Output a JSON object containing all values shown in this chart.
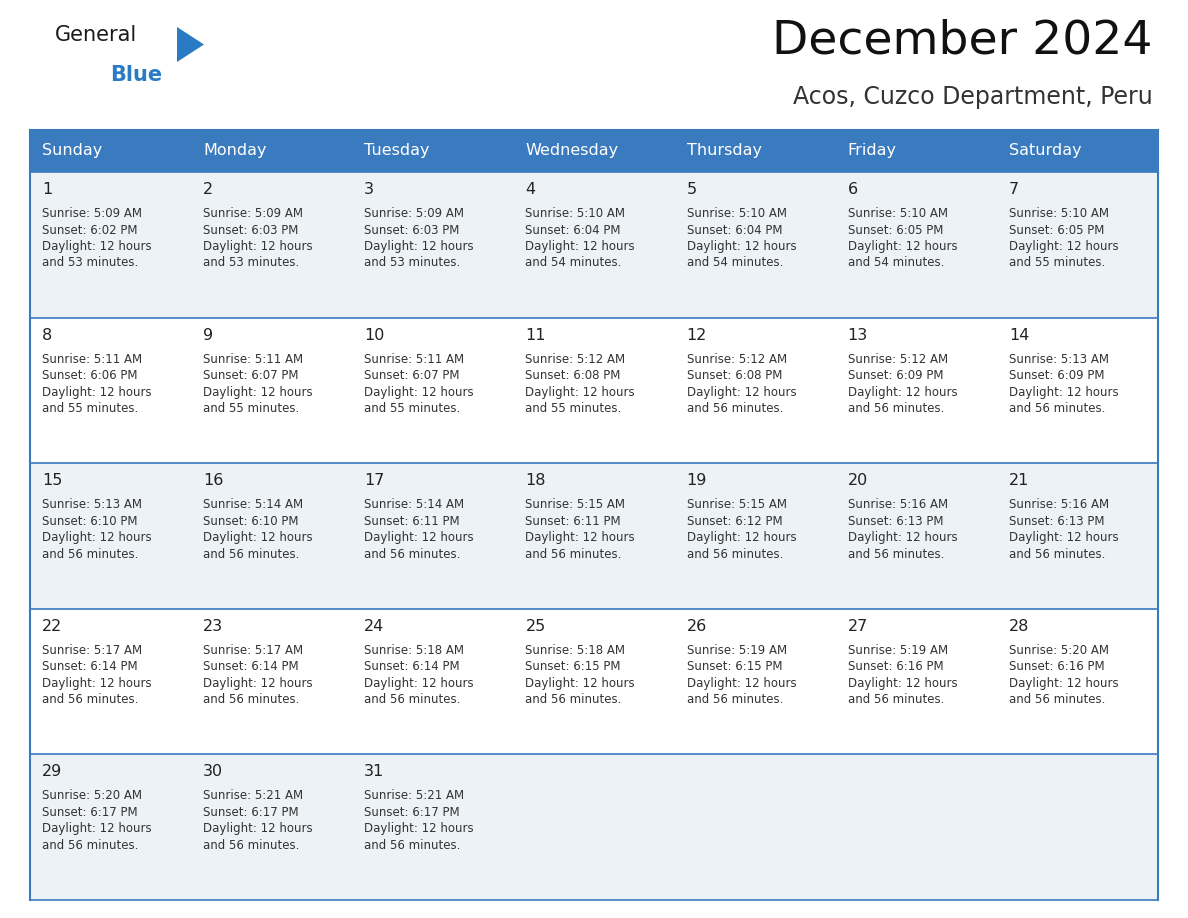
{
  "title": "December 2024",
  "subtitle": "Acos, Cuzco Department, Peru",
  "header_bg": "#3a7abf",
  "header_text": "#ffffff",
  "weekdays": [
    "Sunday",
    "Monday",
    "Tuesday",
    "Wednesday",
    "Thursday",
    "Friday",
    "Saturday"
  ],
  "row_bg_odd": "#edf2f7",
  "row_bg_even": "#ffffff",
  "cell_border": "#3a7abf",
  "day_text_color": "#222222",
  "info_text_color": "#333333",
  "logo_general_color": "#222222",
  "logo_blue_color": "#2b7bc4",
  "days": [
    {
      "day": 1,
      "col": 0,
      "row": 0,
      "sunrise": "5:09 AM",
      "sunset": "6:02 PM",
      "dl_hours": "12 hours",
      "dl_mins": "53 minutes."
    },
    {
      "day": 2,
      "col": 1,
      "row": 0,
      "sunrise": "5:09 AM",
      "sunset": "6:03 PM",
      "dl_hours": "12 hours",
      "dl_mins": "53 minutes."
    },
    {
      "day": 3,
      "col": 2,
      "row": 0,
      "sunrise": "5:09 AM",
      "sunset": "6:03 PM",
      "dl_hours": "12 hours",
      "dl_mins": "53 minutes."
    },
    {
      "day": 4,
      "col": 3,
      "row": 0,
      "sunrise": "5:10 AM",
      "sunset": "6:04 PM",
      "dl_hours": "12 hours",
      "dl_mins": "54 minutes."
    },
    {
      "day": 5,
      "col": 4,
      "row": 0,
      "sunrise": "5:10 AM",
      "sunset": "6:04 PM",
      "dl_hours": "12 hours",
      "dl_mins": "54 minutes."
    },
    {
      "day": 6,
      "col": 5,
      "row": 0,
      "sunrise": "5:10 AM",
      "sunset": "6:05 PM",
      "dl_hours": "12 hours",
      "dl_mins": "54 minutes."
    },
    {
      "day": 7,
      "col": 6,
      "row": 0,
      "sunrise": "5:10 AM",
      "sunset": "6:05 PM",
      "dl_hours": "12 hours",
      "dl_mins": "55 minutes."
    },
    {
      "day": 8,
      "col": 0,
      "row": 1,
      "sunrise": "5:11 AM",
      "sunset": "6:06 PM",
      "dl_hours": "12 hours",
      "dl_mins": "55 minutes."
    },
    {
      "day": 9,
      "col": 1,
      "row": 1,
      "sunrise": "5:11 AM",
      "sunset": "6:07 PM",
      "dl_hours": "12 hours",
      "dl_mins": "55 minutes."
    },
    {
      "day": 10,
      "col": 2,
      "row": 1,
      "sunrise": "5:11 AM",
      "sunset": "6:07 PM",
      "dl_hours": "12 hours",
      "dl_mins": "55 minutes."
    },
    {
      "day": 11,
      "col": 3,
      "row": 1,
      "sunrise": "5:12 AM",
      "sunset": "6:08 PM",
      "dl_hours": "12 hours",
      "dl_mins": "55 minutes."
    },
    {
      "day": 12,
      "col": 4,
      "row": 1,
      "sunrise": "5:12 AM",
      "sunset": "6:08 PM",
      "dl_hours": "12 hours",
      "dl_mins": "56 minutes."
    },
    {
      "day": 13,
      "col": 5,
      "row": 1,
      "sunrise": "5:12 AM",
      "sunset": "6:09 PM",
      "dl_hours": "12 hours",
      "dl_mins": "56 minutes."
    },
    {
      "day": 14,
      "col": 6,
      "row": 1,
      "sunrise": "5:13 AM",
      "sunset": "6:09 PM",
      "dl_hours": "12 hours",
      "dl_mins": "56 minutes."
    },
    {
      "day": 15,
      "col": 0,
      "row": 2,
      "sunrise": "5:13 AM",
      "sunset": "6:10 PM",
      "dl_hours": "12 hours",
      "dl_mins": "56 minutes."
    },
    {
      "day": 16,
      "col": 1,
      "row": 2,
      "sunrise": "5:14 AM",
      "sunset": "6:10 PM",
      "dl_hours": "12 hours",
      "dl_mins": "56 minutes."
    },
    {
      "day": 17,
      "col": 2,
      "row": 2,
      "sunrise": "5:14 AM",
      "sunset": "6:11 PM",
      "dl_hours": "12 hours",
      "dl_mins": "56 minutes."
    },
    {
      "day": 18,
      "col": 3,
      "row": 2,
      "sunrise": "5:15 AM",
      "sunset": "6:11 PM",
      "dl_hours": "12 hours",
      "dl_mins": "56 minutes."
    },
    {
      "day": 19,
      "col": 4,
      "row": 2,
      "sunrise": "5:15 AM",
      "sunset": "6:12 PM",
      "dl_hours": "12 hours",
      "dl_mins": "56 minutes."
    },
    {
      "day": 20,
      "col": 5,
      "row": 2,
      "sunrise": "5:16 AM",
      "sunset": "6:13 PM",
      "dl_hours": "12 hours",
      "dl_mins": "56 minutes."
    },
    {
      "day": 21,
      "col": 6,
      "row": 2,
      "sunrise": "5:16 AM",
      "sunset": "6:13 PM",
      "dl_hours": "12 hours",
      "dl_mins": "56 minutes."
    },
    {
      "day": 22,
      "col": 0,
      "row": 3,
      "sunrise": "5:17 AM",
      "sunset": "6:14 PM",
      "dl_hours": "12 hours",
      "dl_mins": "56 minutes."
    },
    {
      "day": 23,
      "col": 1,
      "row": 3,
      "sunrise": "5:17 AM",
      "sunset": "6:14 PM",
      "dl_hours": "12 hours",
      "dl_mins": "56 minutes."
    },
    {
      "day": 24,
      "col": 2,
      "row": 3,
      "sunrise": "5:18 AM",
      "sunset": "6:14 PM",
      "dl_hours": "12 hours",
      "dl_mins": "56 minutes."
    },
    {
      "day": 25,
      "col": 3,
      "row": 3,
      "sunrise": "5:18 AM",
      "sunset": "6:15 PM",
      "dl_hours": "12 hours",
      "dl_mins": "56 minutes."
    },
    {
      "day": 26,
      "col": 4,
      "row": 3,
      "sunrise": "5:19 AM",
      "sunset": "6:15 PM",
      "dl_hours": "12 hours",
      "dl_mins": "56 minutes."
    },
    {
      "day": 27,
      "col": 5,
      "row": 3,
      "sunrise": "5:19 AM",
      "sunset": "6:16 PM",
      "dl_hours": "12 hours",
      "dl_mins": "56 minutes."
    },
    {
      "day": 28,
      "col": 6,
      "row": 3,
      "sunrise": "5:20 AM",
      "sunset": "6:16 PM",
      "dl_hours": "12 hours",
      "dl_mins": "56 minutes."
    },
    {
      "day": 29,
      "col": 0,
      "row": 4,
      "sunrise": "5:20 AM",
      "sunset": "6:17 PM",
      "dl_hours": "12 hours",
      "dl_mins": "56 minutes."
    },
    {
      "day": 30,
      "col": 1,
      "row": 4,
      "sunrise": "5:21 AM",
      "sunset": "6:17 PM",
      "dl_hours": "12 hours",
      "dl_mins": "56 minutes."
    },
    {
      "day": 31,
      "col": 2,
      "row": 4,
      "sunrise": "5:21 AM",
      "sunset": "6:17 PM",
      "dl_hours": "12 hours",
      "dl_mins": "56 minutes."
    }
  ],
  "num_rows": 5,
  "num_cols": 7
}
